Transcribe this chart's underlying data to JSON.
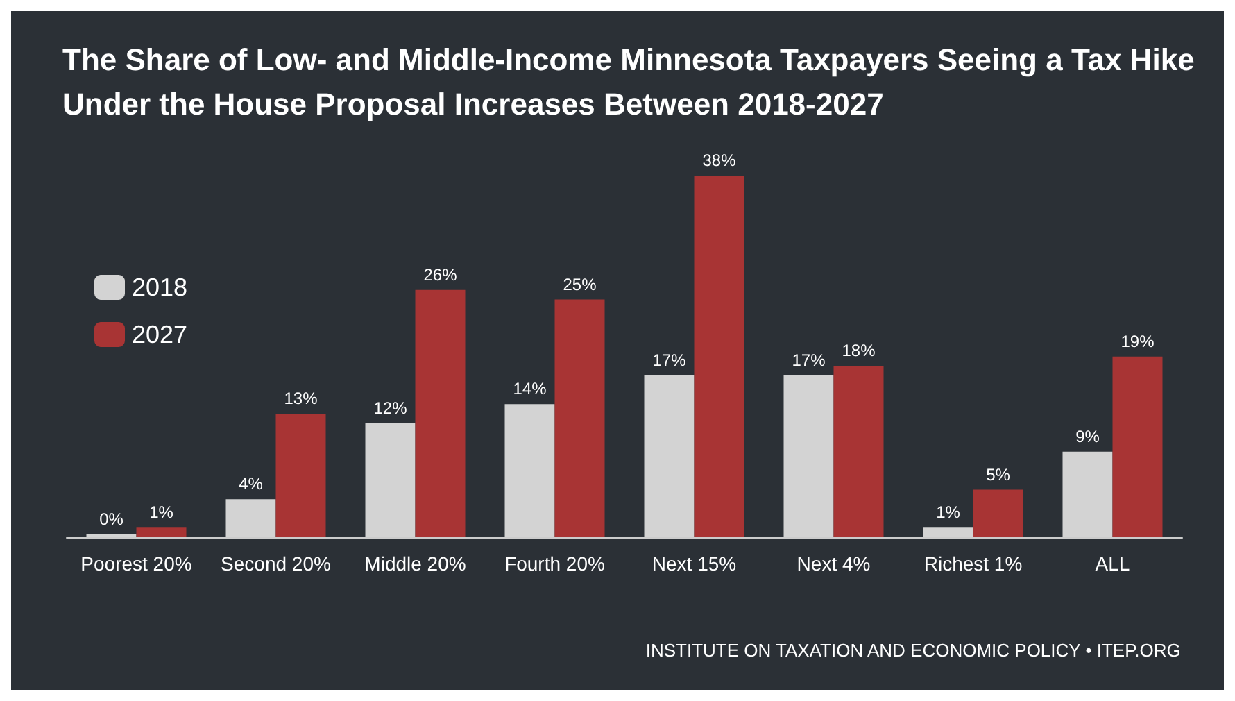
{
  "chart_data": {
    "type": "bar",
    "title": "The Share of Low- and Middle-Income Minnesota Taxpayers Seeing a Tax Hike\nUnder the House Proposal Increases Between 2018-2027",
    "categories": [
      "Poorest 20%",
      "Second 20%",
      "Middle 20%",
      "Fourth 20%",
      "Next 15%",
      "Next 4%",
      "Richest 1%",
      "ALL"
    ],
    "series": [
      {
        "name": "2018",
        "color": "#d3d3d3",
        "values": [
          0,
          4,
          12,
          14,
          17,
          17,
          1,
          9
        ],
        "value_labels": [
          "0%",
          "4%",
          "12%",
          "14%",
          "17%",
          "17%",
          "1%",
          "9%"
        ]
      },
      {
        "name": "2027",
        "color": "#a83434",
        "values": [
          1,
          13,
          26,
          25,
          38,
          18,
          5,
          19
        ],
        "value_labels": [
          "1%",
          "13%",
          "26%",
          "25%",
          "38%",
          "18%",
          "5%",
          "19%"
        ]
      }
    ],
    "legend": "top left",
    "annotations": [
      "INSTITUTE ON TAXATION AND ECONOMIC POLICY • ITEP.ORG"
    ]
  }
}
